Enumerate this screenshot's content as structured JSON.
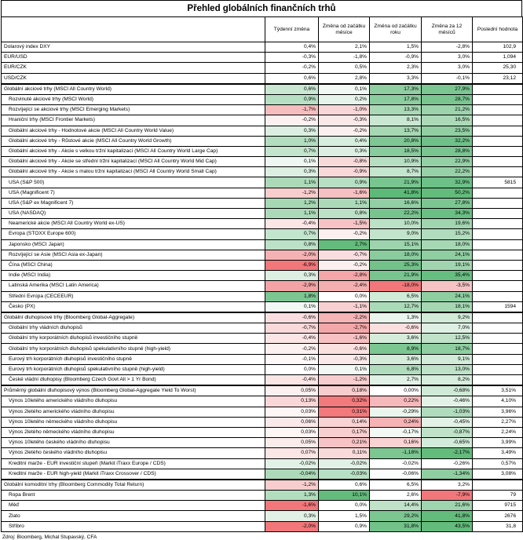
{
  "title": "Přehled globálních finančních trhů",
  "headers": [
    "",
    "Týdenní změna",
    "Změna od začátku měsíce",
    "Změna od začátku roku",
    "Změna za 12 měsíců",
    "Poslední hodnota"
  ],
  "groups": [
    {
      "rows": [
        {
          "label": "Dolarový index DXY",
          "indent": false,
          "values": [
            "0,4%",
            "2,1%",
            "1,5%",
            "-2,8%"
          ],
          "colors": [
            "",
            "",
            "",
            ""
          ],
          "last": "102,9"
        },
        {
          "label": "EUR/USD",
          "indent": false,
          "values": [
            "-0,3%",
            "-1,8%",
            "-0,9%",
            "3,0%"
          ],
          "colors": [
            "",
            "",
            "",
            ""
          ],
          "last": "1,094"
        },
        {
          "label": "EUR/CZK",
          "indent": false,
          "values": [
            "-0,2%",
            "0,5%",
            "2,3%",
            "3,0%"
          ],
          "colors": [
            "",
            "",
            "",
            ""
          ],
          "last": "25,30"
        },
        {
          "label": "USD/CZK",
          "indent": false,
          "values": [
            "0,6%",
            "2,8%",
            "3,3%",
            "-0,1%"
          ],
          "colors": [
            "",
            "",
            "",
            ""
          ],
          "last": "23,12"
        }
      ]
    },
    {
      "rows": [
        {
          "label": "Globální akciové trhy (MSCI All Country World)",
          "indent": false,
          "values": [
            "0,6%",
            "0,1%",
            "17,3%",
            "27,9%"
          ],
          "colors": [
            "#c9e7d2",
            "#f2f9f4",
            "#8fcea1",
            "#7cc692"
          ],
          "last": ""
        },
        {
          "label": "Rozvinuté akciové trhy (MSCI World)",
          "indent": true,
          "values": [
            "0,9%",
            "0,2%",
            "17,8%",
            "28,7%"
          ],
          "colors": [
            "#b7dfc3",
            "#e7f4eb",
            "#8ccd9f",
            "#79c590"
          ],
          "last": ""
        },
        {
          "label": "Rozvíjející se akciové trhy (MSCI Emerging Markets)",
          "indent": true,
          "values": [
            "-1,7%",
            "-1,0%",
            "13,3%",
            "21,2%"
          ],
          "colors": [
            "#f6bdbf",
            "#f9d6d7",
            "#a9d9b6",
            "#9cd3ac"
          ],
          "last": ""
        },
        {
          "label": "Hraniční trhy (MSCI Frontier Markets)",
          "indent": true,
          "values": [
            "-0,2%",
            "-0,3%",
            "8,1%",
            "16,5%"
          ],
          "colors": [
            "#fdf0f0",
            "#fbe9e9",
            "#c9e7d2",
            "#acdab9"
          ],
          "last": ""
        },
        {
          "label": "Globální akciové trhy - Hodnotové akcie (MSCI All Country World Value)",
          "indent": true,
          "values": [
            "0,3%",
            "-0,2%",
            "13,7%",
            "23,5%"
          ],
          "colors": [
            "#dcefe2",
            "#fcefef",
            "#a7d8b4",
            "#91cfa2"
          ],
          "last": ""
        },
        {
          "label": "Globální akciové trhy - Růstové akcie (MSCI All Country World Growth)",
          "indent": true,
          "values": [
            "1,0%",
            "0,4%",
            "20,8%",
            "32,2%"
          ],
          "colors": [
            "#b2ddbf",
            "#d7eddd",
            "#7ec794",
            "#70c189"
          ],
          "last": ""
        },
        {
          "label": "Globální akciové trhy - Akcie s velkou tržní kapitalizací (MSCI All Country World Large Cap)",
          "indent": true,
          "values": [
            "0,7%",
            "0,3%",
            "18,5%",
            "28,8%"
          ],
          "colors": [
            "#c3e4cd",
            "#dcefe2",
            "#88cb9c",
            "#79c590"
          ],
          "last": ""
        },
        {
          "label": "Globální akciové trhy - Akcie se střední tržní kapitalizací (MSCI All Country World Mid Cap)",
          "indent": true,
          "values": [
            "0,1%",
            "-0,8%",
            "10,9%",
            "22,9%"
          ],
          "colors": [
            "#eef7f1",
            "#f9dadb",
            "#b6dec2",
            "#94d0a5"
          ],
          "last": ""
        },
        {
          "label": "Globální akciové trhy - Akcie s malou tržní kapitalizací (MSCI All Country World Small Cap)",
          "indent": true,
          "values": [
            "0,3%",
            "-0,9%",
            "8,7%",
            "22,2%"
          ],
          "colors": [
            "#dcefe2",
            "#f9d8d9",
            "#c4e5ce",
            "#97d1a7"
          ],
          "last": ""
        },
        {
          "label": "USA (S&P 500)",
          "indent": true,
          "values": [
            "1,1%",
            "0,9%",
            "21,9%",
            "32,9%"
          ],
          "colors": [
            "#acdab9",
            "#b7dfc3",
            "#79c590",
            "#6dc087"
          ],
          "last": "5815"
        },
        {
          "label": "USA (Magnificent 7)",
          "indent": true,
          "values": [
            "-1,2%",
            "-1,6%",
            "41,8%",
            "50,2%"
          ],
          "colors": [
            "#f8cdce",
            "#f7c0c2",
            "#5cb978",
            "#63bb7c"
          ],
          "last": ""
        },
        {
          "label": "USA (S&P ex Magnificent 7)",
          "indent": true,
          "values": [
            "1,2%",
            "1,1%",
            "16,6%",
            "27,8%"
          ],
          "colors": [
            "#a7d8b4",
            "#acdab9",
            "#93cfa4",
            "#7cc692"
          ],
          "last": ""
        },
        {
          "label": "USA (NASDAQ)",
          "indent": true,
          "values": [
            "1,1%",
            "0,8%",
            "22,2%",
            "34,3%"
          ],
          "colors": [
            "#acdab9",
            "#bce1c7",
            "#78c48f",
            "#6abf84"
          ],
          "last": ""
        },
        {
          "label": "Neamerické akcie (MSCI All Country World ex-US)",
          "indent": true,
          "values": [
            "-0,4%",
            "-1,5%",
            "10,0%",
            "19,6%"
          ],
          "colors": [
            "#fbe5e5",
            "#f7c3c4",
            "#bbe1c6",
            "#a0d5af"
          ],
          "last": ""
        },
        {
          "label": "Evropa (STOXX Europe 600)",
          "indent": true,
          "values": [
            "0,7%",
            "-0,2%",
            "9,0%",
            "15,2%"
          ],
          "colors": [
            "#c3e4cd",
            "#fcefef",
            "#c2e4cc",
            "#b1dcbe"
          ],
          "last": ""
        },
        {
          "label": "Japonsko (MSCI Japan)",
          "indent": true,
          "values": [
            "0,8%",
            "2,7%",
            "15,1%",
            "18,0%"
          ],
          "colors": [
            "#bce1c7",
            "#63bb7c",
            "#9dd4ad",
            "#a6d8b4"
          ],
          "last": ""
        },
        {
          "label": "Rozvíjející se Asie (MSCI Asia ex-Japan)",
          "indent": true,
          "values": [
            "-2,0%",
            "-0,7%",
            "18,0%",
            "24,1%"
          ],
          "colors": [
            "#f5b2b4",
            "#fadedf",
            "#8acc9e",
            "#8fcea1"
          ],
          "last": ""
        },
        {
          "label": "Čína (MSCI China)",
          "indent": true,
          "values": [
            "-6,9%",
            "-0,2%",
            "25,3%",
            "19,1%"
          ],
          "colors": [
            "#f2777a",
            "#fcefef",
            "#72c28a",
            "#a1d5b0"
          ],
          "last": ""
        },
        {
          "label": "Indie (MSCI India)",
          "indent": true,
          "values": [
            "0,3%",
            "-2,8%",
            "21,9%",
            "35,4%"
          ],
          "colors": [
            "#dcefe2",
            "#f4a6a8",
            "#79c590",
            "#67be81"
          ],
          "last": ""
        },
        {
          "label": "Latinská Amerika (MSCI Latin America)",
          "indent": true,
          "values": [
            "-2,9%",
            "-2,4%",
            "-18,0%",
            "-3,5%"
          ],
          "colors": [
            "#f3a3a5",
            "#f4afb1",
            "#f2777a",
            "#f6c3c5"
          ],
          "last": ""
        },
        {
          "label": "Střední Evropa (CECEEUR)",
          "indent": true,
          "values": [
            "1,8%",
            "0,0%",
            "6,5%",
            "24,1%"
          ],
          "colors": [
            "#7cc692",
            "#ffffff",
            "#d0ead8",
            "#8fcea1"
          ],
          "last": ""
        },
        {
          "label": "Česko (PX)",
          "indent": true,
          "values": [
            "0,1%",
            "-1,1%",
            "12,7%",
            "18,1%"
          ],
          "colors": [
            "#f2f9f4",
            "#f8d0d1",
            "#abdab8",
            "#a5d7b3"
          ],
          "last": "1594"
        }
      ]
    },
    {
      "rows": [
        {
          "label": "Globální dluhopisové trhy (Bloomberg Global-Aggregate)",
          "indent": false,
          "values": [
            "-0,6%",
            "-2,2%",
            "1,3%",
            "9,2%"
          ],
          "colors": [
            "#fadedf",
            "#f5b4b6",
            "#eaf5ed",
            "#d2ebd9"
          ],
          "last": ""
        },
        {
          "label": "Globální trhy vládních dluhopisů",
          "indent": true,
          "values": [
            "-0,7%",
            "-2,7%",
            "-0,6%",
            "7,0%"
          ],
          "colors": [
            "#f9d9da",
            "#f4a7a9",
            "#fbdfdf",
            "#def0e4"
          ],
          "last": ""
        },
        {
          "label": "Globální trhy korporátních dluhopisů investičního stupně",
          "indent": true,
          "values": [
            "-0,4%",
            "-1,6%",
            "3,6%",
            "12,5%"
          ],
          "colors": [
            "#fbe5e5",
            "#f7c0c2",
            "#d5ecdb",
            "#bfe2c9"
          ],
          "last": ""
        },
        {
          "label": "Globální trhy korporátních dluhopisů spekulativního stupně (high-yield)",
          "indent": true,
          "values": [
            "-0,2%",
            "-0,6%",
            "8,9%",
            "18,7%"
          ],
          "colors": [
            "#fdf0f0",
            "#fbe0e0",
            "#7cc692",
            "#8fcea1"
          ],
          "last": ""
        },
        {
          "label": "Eurový trh korporátních dluhopisů investičního stupně",
          "indent": true,
          "values": [
            "-0,1%",
            "-0,3%",
            "3,6%",
            "9,1%"
          ],
          "colors": [
            "#fef8f8",
            "#fbe9e9",
            "#d5ecdb",
            "#d2ebd9"
          ],
          "last": ""
        },
        {
          "label": "Eurový trh korporátních dluhopisů spekulativního stupně (high-yield)",
          "indent": true,
          "values": [
            "0,0%",
            "0,1%",
            "6,8%",
            "13,0%"
          ],
          "colors": [
            "#ffffff",
            "#f2f9f4",
            "#b0dcbd",
            "#bde2c8"
          ],
          "last": ""
        },
        {
          "label": "České vládní dluhopisy (Bloomberg Czech Govt All > 1 Yr Bond)",
          "indent": true,
          "values": [
            "-0,4%",
            "-1,2%",
            "2,7%",
            "8,2%"
          ],
          "colors": [
            "#fbe5e5",
            "#f8cdce",
            "#e1f1e6",
            "#d7eddd"
          ],
          "last": ""
        }
      ]
    },
    {
      "rows": [
        {
          "label": "Průměrný globální dluhopisový výnos (Bloomberg Global-Aggregate Yield To Worst)",
          "indent": false,
          "values": [
            "0,05%",
            "0,18%",
            "0,00%",
            "-0,68%"
          ],
          "colors": [
            "#fdf0f0",
            "#f8cdce",
            "#ffffff",
            "#d0ead8"
          ],
          "last": "3,51%"
        },
        {
          "label": "Výnos 10letého amerického vládního dluhopisu",
          "indent": true,
          "values": [
            "0,13%",
            "0,32%",
            "0,22%",
            "-0,46%"
          ],
          "colors": [
            "#f9d6d7",
            "#f2797c",
            "#f6b9bb",
            "#e3f2e7"
          ],
          "last": "4,10%"
        },
        {
          "label": "Výnos 2letého amerického vládního dluhopisu",
          "indent": true,
          "values": [
            "0,03%",
            "0,31%",
            "-0,29%",
            "-1,03%"
          ],
          "colors": [
            "#fef5f5",
            "#f2797c",
            "#eaf5ed",
            "#b0dcbd"
          ],
          "last": "3,96%"
        },
        {
          "label": "Výnos 10letého německého vládního dluhopisu",
          "indent": true,
          "values": [
            "0,06%",
            "0,14%",
            "0,24%",
            "-0,45%"
          ],
          "colors": [
            "#fbe9e9",
            "#f9d3d4",
            "#f6b3b5",
            "#e3f2e7"
          ],
          "last": "2,27%"
        },
        {
          "label": "Výnos 2letého německého vládního dluhopisu",
          "indent": true,
          "values": [
            "0,03%",
            "0,17%",
            "-0,17%",
            "-0,87%"
          ],
          "colors": [
            "#fef5f5",
            "#f8cfd0",
            "#f2f9f4",
            "#bfe2c9"
          ],
          "last": "2,24%"
        },
        {
          "label": "Výnos 10letého českého vládního dluhopisu",
          "indent": true,
          "values": [
            "0,05%",
            "0,21%",
            "0,16%",
            "-0,65%"
          ],
          "colors": [
            "#fbecec",
            "#f7c3c4",
            "#f9d3d4",
            "#d3ebda"
          ],
          "last": "3,99%"
        },
        {
          "label": "Výnos 2letého českého vládního dluhopisu",
          "indent": true,
          "values": [
            "0,07%",
            "0,11%",
            "-1,18%",
            "-2,17%"
          ],
          "colors": [
            "#fbe5e5",
            "#f9dadb",
            "#7cc692",
            "#63bb7c"
          ],
          "last": "3,49%"
        },
        {
          "label": "Kreditní marže - EUR investiční stupeň (Markit iTraxx Europe / CDS)",
          "indent": true,
          "values": [
            "-0,02%",
            "-0,02%",
            "-0,02%",
            "-0,26%"
          ],
          "colors": [
            "#e1f1e6",
            "#e1f1e6",
            "#ffffff",
            "#ffffff"
          ],
          "last": "0,57%"
        },
        {
          "label": "Kreditní marže - EUR high-yield (Markit iTraxx Crossover / CDS)",
          "indent": true,
          "values": [
            "-0,04%",
            "-0,03%",
            "-0,06%",
            "-1,34%"
          ],
          "colors": [
            "#acdab9",
            "#b7dfc3",
            "#fafdfb",
            "#8fcea1"
          ],
          "last": "3,08%"
        }
      ]
    },
    {
      "rows": [
        {
          "label": "Globální komoditní trhy (Bloomberg Commodity Total Return)",
          "indent": false,
          "values": [
            "-1,2%",
            "0,6%",
            "6,5%",
            "3,2%"
          ],
          "colors": [
            "#f8cdce",
            "#ffffff",
            "#ffffff",
            "#ffffff"
          ],
          "last": ""
        },
        {
          "label": "Ropa Brent",
          "indent": true,
          "values": [
            "1,3%",
            "10,1%",
            "2,6%",
            "-7,9%"
          ],
          "colors": [
            "#b2ddbf",
            "#63bb7c",
            "#ffffff",
            "#f2777a"
          ],
          "last": "79"
        },
        {
          "label": "Měď",
          "indent": true,
          "values": [
            "-1,6%",
            "0,0%",
            "14,4%",
            "21,6%"
          ],
          "colors": [
            "#f2777a",
            "#ffffff",
            "#bfe2c9",
            "#9ed4ae"
          ],
          "last": "9715"
        },
        {
          "label": "Zlato",
          "indent": true,
          "values": [
            "0,3%",
            "1,5%",
            "29,2%",
            "41,8%"
          ],
          "colors": [
            "#e1f1e6",
            "#ffffff",
            "#7cc692",
            "#63bb7c"
          ],
          "last": "2676"
        },
        {
          "label": "Stříbro",
          "indent": true,
          "values": [
            "-2,0%",
            "0,9%",
            "31,8%",
            "43,5%"
          ],
          "colors": [
            "#f2777a",
            "#ffffff",
            "#72c28a",
            "#63bb7c"
          ],
          "last": "31,8"
        }
      ]
    }
  ],
  "source": "Zdroj: Bloomberg, Michal Stupavský, CFA"
}
